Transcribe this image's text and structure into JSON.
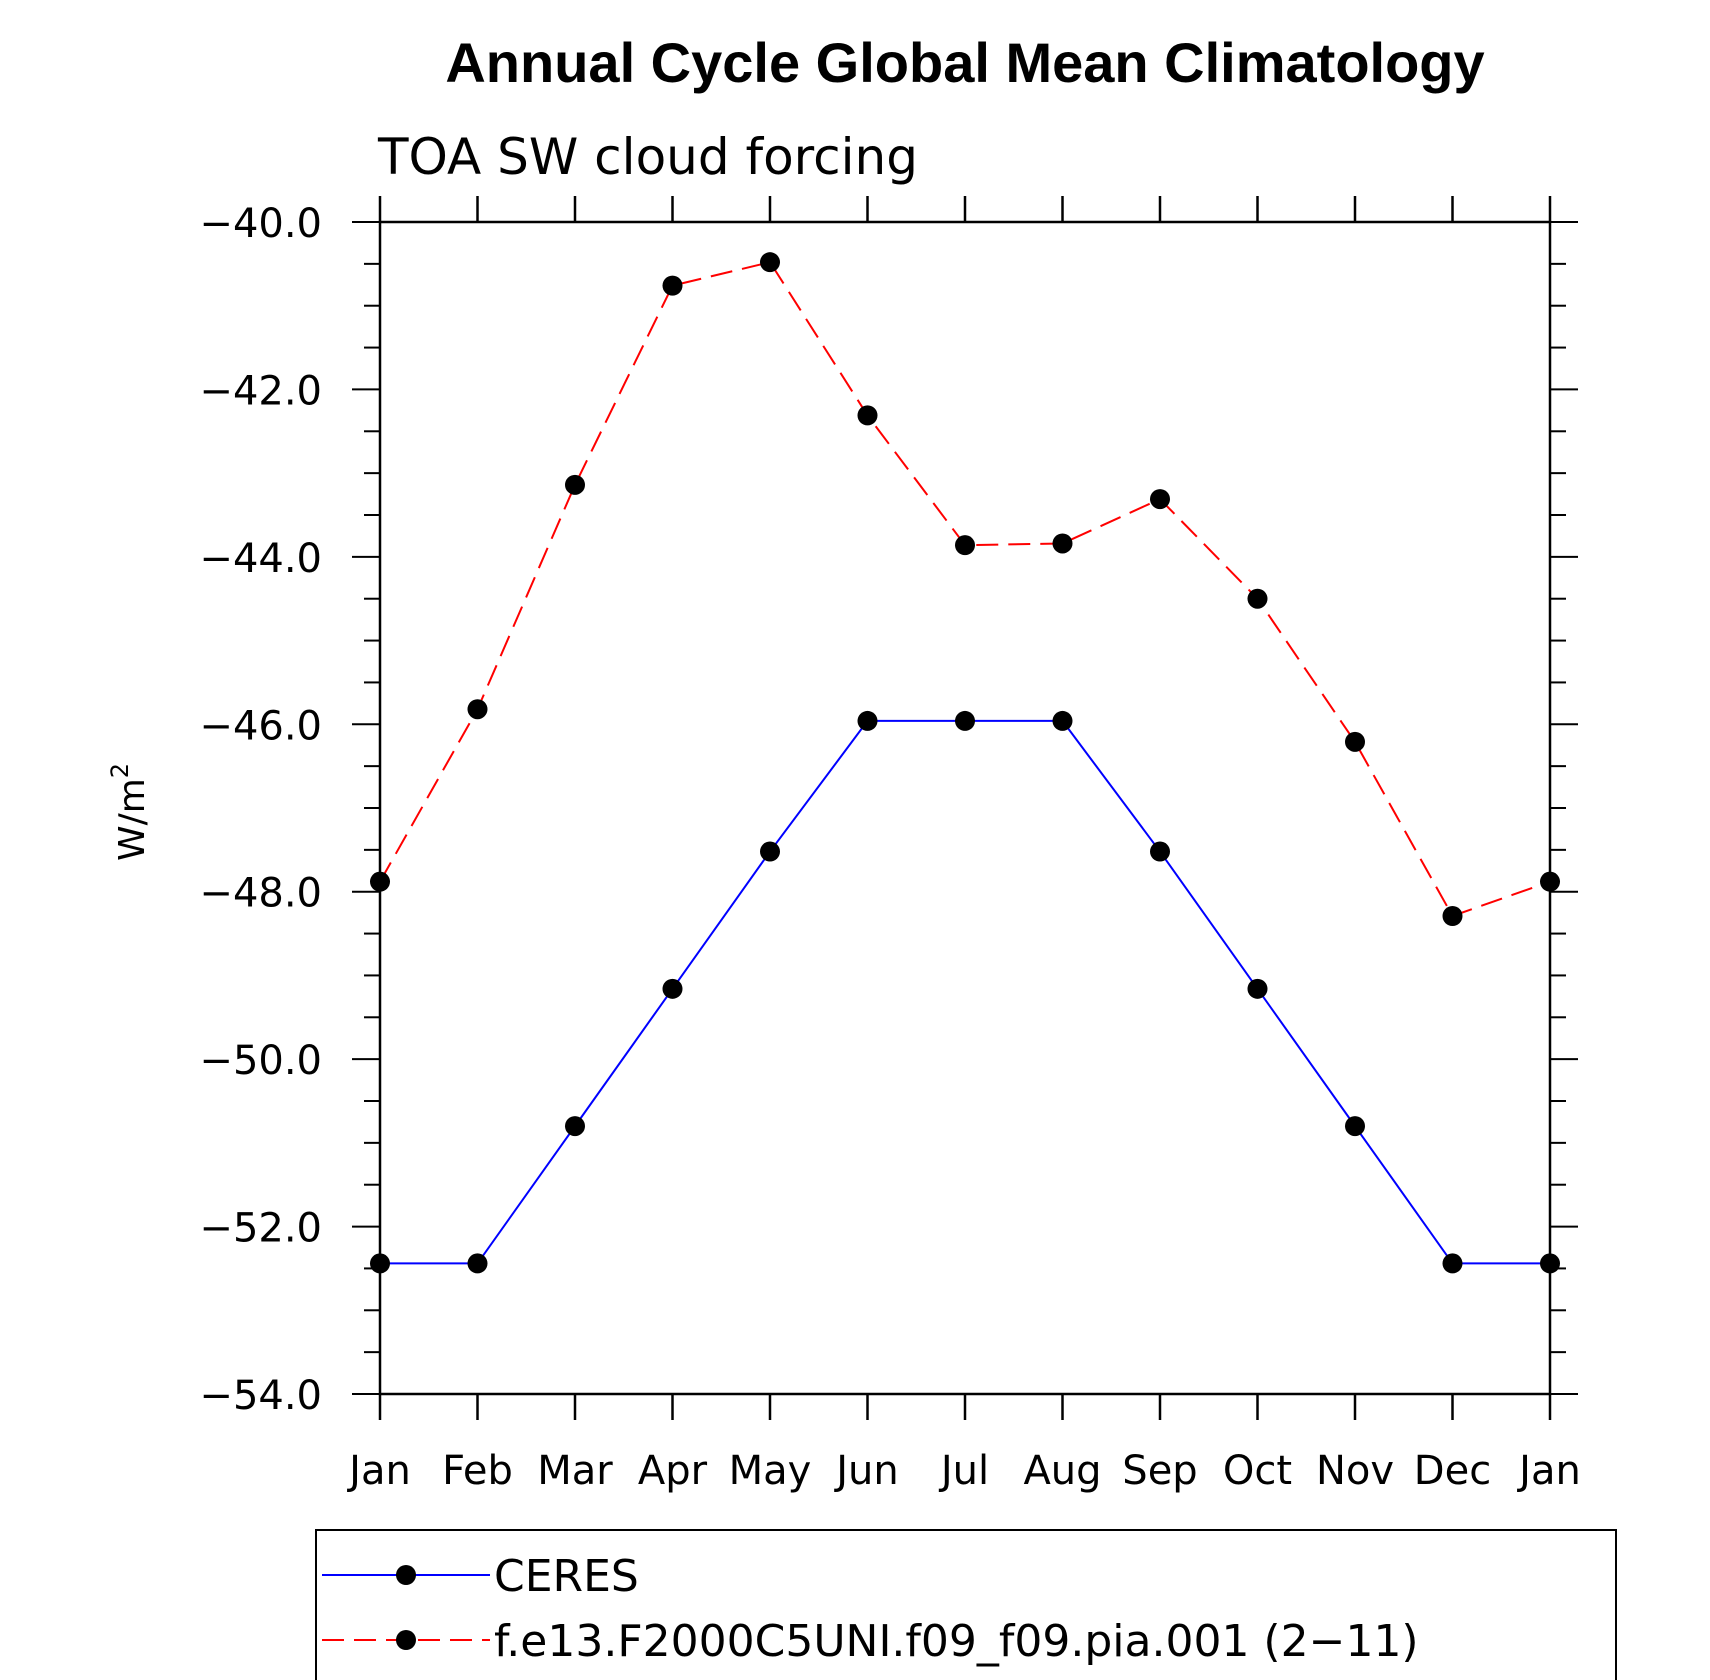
{
  "chart_data": {
    "type": "line",
    "title": "Annual Cycle Global Mean Climatology",
    "subtitle": "TOA SW cloud forcing",
    "xlabel": "",
    "ylabel": "W/m",
    "ylabel_superscript": "2",
    "categories": [
      "Jan",
      "Feb",
      "Mar",
      "Apr",
      "May",
      "Jun",
      "Jul",
      "Aug",
      "Sep",
      "Oct",
      "Nov",
      "Dec",
      "Jan"
    ],
    "ylim": [
      -54.0,
      -40.0
    ],
    "yticks": [
      -40.0,
      -42.0,
      -44.0,
      -46.0,
      -48.0,
      -50.0,
      -52.0,
      -54.0
    ],
    "ytick_labels": [
      "−40.0",
      "−42.0",
      "−44.0",
      "−46.0",
      "−48.0",
      "−50.0",
      "−52.0",
      "−54.0"
    ],
    "series": [
      {
        "name": "CERES",
        "color": "#0000ff",
        "dash": "solid",
        "values": [
          -52.44,
          -52.44,
          -50.8,
          -49.16,
          -47.52,
          -45.96,
          -45.96,
          -45.96,
          -47.52,
          -49.16,
          -50.8,
          -52.44,
          -52.44
        ]
      },
      {
        "name": "f.e13.F2000C5UNI.f09_f09.pia.001 (2−11)",
        "color": "#ff0000",
        "dash": "dashed",
        "values": [
          -47.88,
          -45.82,
          -43.14,
          -40.76,
          -40.48,
          -42.31,
          -43.86,
          -43.84,
          -43.31,
          -44.5,
          -46.21,
          -48.29,
          -47.88
        ]
      }
    ],
    "marker_color": "#000000",
    "grid": false,
    "legend_position": "bottom"
  }
}
